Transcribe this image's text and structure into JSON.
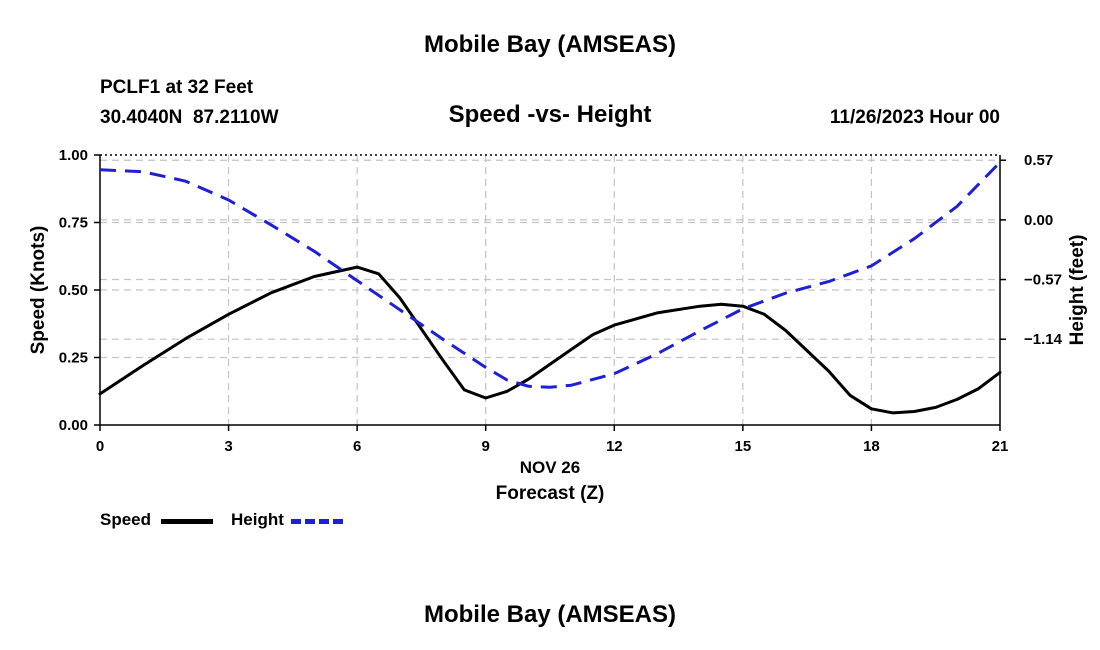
{
  "header": {
    "title": "Mobile Bay (AMSEAS)",
    "station": "PCLF1 at 32 Feet",
    "coords": "30.4040N  87.2110W",
    "datetime": "11/26/2023 Hour 00"
  },
  "footer": {
    "title": "Mobile Bay (AMSEAS)"
  },
  "chart_data": {
    "type": "line",
    "title": "Speed -vs- Height",
    "xlabel": "Forecast (Z)",
    "x_date_label": "NOV 26",
    "ylabel": "Speed (Knots)",
    "y2label": "Height (feet)",
    "xlim": [
      0,
      21
    ],
    "ylim": [
      0,
      1
    ],
    "y2lim": [
      -1.96,
      0.62
    ],
    "grid": true,
    "legend_position": "bottom-left",
    "x_ticks": [
      0,
      3,
      6,
      9,
      12,
      15,
      18,
      21
    ],
    "x_tick_labels": [
      "0",
      "3",
      "6",
      "9",
      "12",
      "15",
      "18",
      "21"
    ],
    "y_ticks": [
      0,
      0.25,
      0.5,
      0.75,
      1.0
    ],
    "y_tick_labels": [
      "0.00",
      "0.25",
      "0.50",
      "0.75",
      "1.00"
    ],
    "y2_ticks": [
      0.57,
      0.0,
      -0.57,
      -1.14
    ],
    "y2_tick_labels": [
      "0.57",
      "0.00",
      "−0.57",
      "−1.14"
    ],
    "series": [
      {
        "name": "Speed",
        "axis": "left",
        "color": "#000000",
        "style": "solid",
        "x": [
          0,
          1,
          2,
          3,
          4,
          5,
          6,
          6.5,
          7,
          8,
          8.5,
          9,
          9.5,
          10,
          11,
          11.5,
          12,
          13,
          14,
          14.5,
          15,
          15.5,
          16,
          17,
          17.5,
          18,
          18.5,
          19,
          19.5,
          20,
          20.5,
          21
        ],
        "values": [
          0.115,
          0.22,
          0.32,
          0.41,
          0.49,
          0.55,
          0.585,
          0.56,
          0.47,
          0.24,
          0.13,
          0.1,
          0.125,
          0.17,
          0.28,
          0.335,
          0.37,
          0.415,
          0.44,
          0.447,
          0.44,
          0.41,
          0.35,
          0.2,
          0.11,
          0.06,
          0.045,
          0.05,
          0.065,
          0.095,
          0.135,
          0.195
        ]
      },
      {
        "name": "Height",
        "axis": "right",
        "color": "#1f1fd6",
        "style": "dashed",
        "x": [
          0,
          1,
          2,
          3,
          4,
          5,
          6,
          7,
          8,
          9,
          9.5,
          10,
          10.5,
          11,
          12,
          13,
          14,
          15,
          16,
          17,
          18,
          19,
          20,
          21
        ],
        "values": [
          0.48,
          0.46,
          0.37,
          0.19,
          -0.05,
          -0.3,
          -0.58,
          -0.86,
          -1.14,
          -1.41,
          -1.53,
          -1.59,
          -1.6,
          -1.58,
          -1.47,
          -1.28,
          -1.06,
          -0.85,
          -0.7,
          -0.59,
          -0.44,
          -0.18,
          0.13,
          0.55
        ]
      }
    ]
  }
}
